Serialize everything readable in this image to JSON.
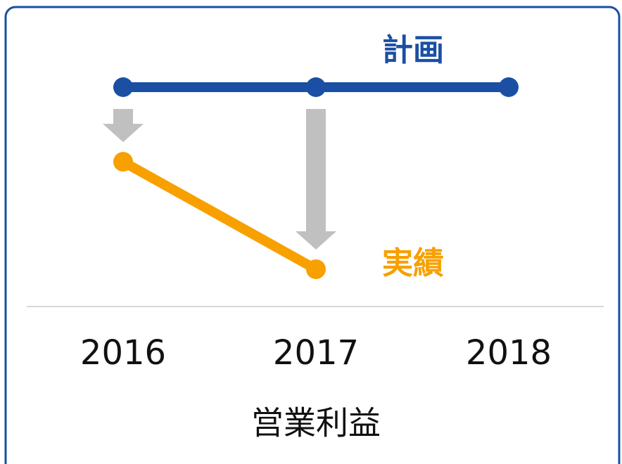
{
  "chart_data": {
    "type": "line",
    "categories": [
      "2016",
      "2017",
      "2018"
    ],
    "series": [
      {
        "name": "計画",
        "color": "#1a4fa3",
        "values": [
          100,
          100,
          100
        ]
      },
      {
        "name": "実績",
        "color": "#f7a000",
        "values": [
          66,
          17,
          null
        ]
      }
    ],
    "xlabel": "営業利益",
    "ylim": [
      0,
      100
    ]
  }
}
